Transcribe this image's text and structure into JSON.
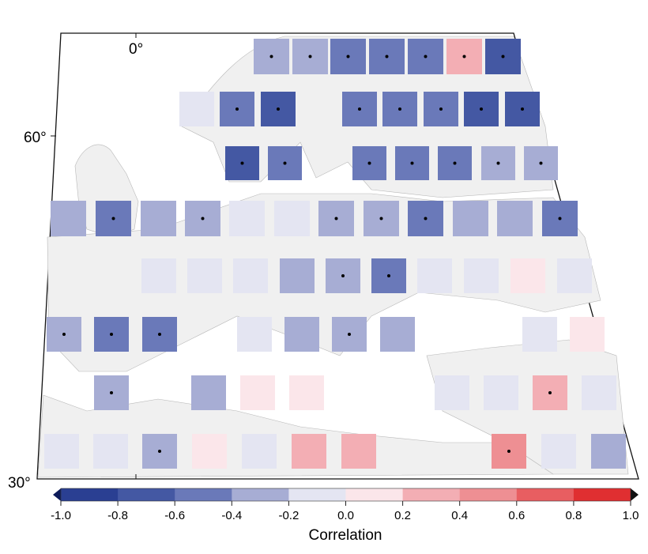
{
  "chart_data": {
    "type": "heatmap",
    "title": "",
    "colorbar": {
      "label": "Correlation",
      "ticks": [
        "-1.0",
        "-0.8",
        "-0.6",
        "-0.4",
        "-0.2",
        "0.0",
        "0.2",
        "0.4",
        "0.6",
        "0.8",
        "1.0"
      ],
      "min": -1.0,
      "max": 1.0,
      "step": 0.2,
      "colors": [
        "#2a3f92",
        "#4458a3",
        "#6a79b9",
        "#a7add4",
        "#e4e5f2",
        "#fbe6ea",
        "#f3aeb4",
        "#ee8f93",
        "#e85e61",
        "#e02f31"
      ]
    },
    "axes": {
      "lat_labels": [
        "60°",
        "30°"
      ],
      "lon_labels": [
        "0°"
      ]
    },
    "significance_marker": "dot",
    "rows": [
      [
        {
          "value": -0.3,
          "sig": true
        },
        {
          "value": -0.3,
          "sig": true
        },
        {
          "value": -0.5,
          "sig": true
        },
        {
          "value": -0.5,
          "sig": true
        },
        {
          "value": -0.5,
          "sig": true
        },
        {
          "value": 0.3,
          "sig": true
        },
        {
          "value": -0.7,
          "sig": true
        }
      ],
      [
        {
          "value": -0.1,
          "sig": false
        },
        {
          "value": -0.5,
          "sig": true
        },
        {
          "value": -0.7,
          "sig": true
        },
        {
          "value": -0.5,
          "sig": true
        },
        {
          "value": -0.5,
          "sig": true
        },
        {
          "value": -0.5,
          "sig": true
        },
        {
          "value": -0.7,
          "sig": true
        },
        {
          "value": -0.7,
          "sig": true
        }
      ],
      [
        {
          "value": -0.7,
          "sig": true
        },
        {
          "value": -0.5,
          "sig": true
        },
        {
          "value": -0.5,
          "sig": true
        },
        {
          "value": -0.5,
          "sig": true
        },
        {
          "value": -0.5,
          "sig": true
        },
        {
          "value": -0.3,
          "sig": true
        },
        {
          "value": -0.3,
          "sig": true
        }
      ],
      [
        {
          "value": -0.3,
          "sig": false
        },
        {
          "value": -0.5,
          "sig": true
        },
        {
          "value": -0.3,
          "sig": false
        },
        {
          "value": -0.3,
          "sig": true
        },
        {
          "value": -0.1,
          "sig": false
        },
        {
          "value": -0.1,
          "sig": false
        },
        {
          "value": -0.3,
          "sig": true
        },
        {
          "value": -0.3,
          "sig": true
        },
        {
          "value": -0.5,
          "sig": true
        },
        {
          "value": -0.3,
          "sig": false
        },
        {
          "value": -0.3,
          "sig": false
        },
        {
          "value": -0.5,
          "sig": true
        }
      ],
      [
        {
          "value": -0.1,
          "sig": false
        },
        {
          "value": -0.1,
          "sig": false
        },
        {
          "value": -0.1,
          "sig": false
        },
        {
          "value": -0.3,
          "sig": false
        },
        {
          "value": -0.3,
          "sig": true
        },
        {
          "value": -0.5,
          "sig": true
        },
        {
          "value": -0.1,
          "sig": false
        },
        {
          "value": -0.1,
          "sig": false
        },
        {
          "value": 0.1,
          "sig": false
        },
        {
          "value": -0.1,
          "sig": false
        }
      ],
      [
        {
          "value": -0.3,
          "sig": true
        },
        {
          "value": -0.5,
          "sig": true
        },
        {
          "value": -0.5,
          "sig": true
        },
        {
          "value": -0.1,
          "sig": false
        },
        {
          "value": -0.3,
          "sig": false
        },
        {
          "value": -0.3,
          "sig": true
        },
        {
          "value": -0.3,
          "sig": false
        },
        {
          "value": -0.1,
          "sig": false
        },
        {
          "value": 0.1,
          "sig": false
        }
      ],
      [
        {
          "value": -0.3,
          "sig": true
        },
        {
          "value": -0.3,
          "sig": false
        },
        {
          "value": 0.1,
          "sig": false
        },
        {
          "value": 0.1,
          "sig": false
        },
        {
          "value": -0.1,
          "sig": false
        },
        {
          "value": -0.1,
          "sig": false
        },
        {
          "value": 0.3,
          "sig": true
        },
        {
          "value": -0.1,
          "sig": false
        }
      ],
      [
        {
          "value": -0.1,
          "sig": false
        },
        {
          "value": -0.1,
          "sig": false
        },
        {
          "value": -0.3,
          "sig": true
        },
        {
          "value": 0.1,
          "sig": false
        },
        {
          "value": -0.1,
          "sig": false
        },
        {
          "value": 0.3,
          "sig": false
        },
        {
          "value": 0.3,
          "sig": false
        },
        {
          "value": 0.5,
          "sig": true
        },
        {
          "value": -0.1,
          "sig": false
        },
        {
          "value": -0.3,
          "sig": false
        }
      ]
    ]
  }
}
